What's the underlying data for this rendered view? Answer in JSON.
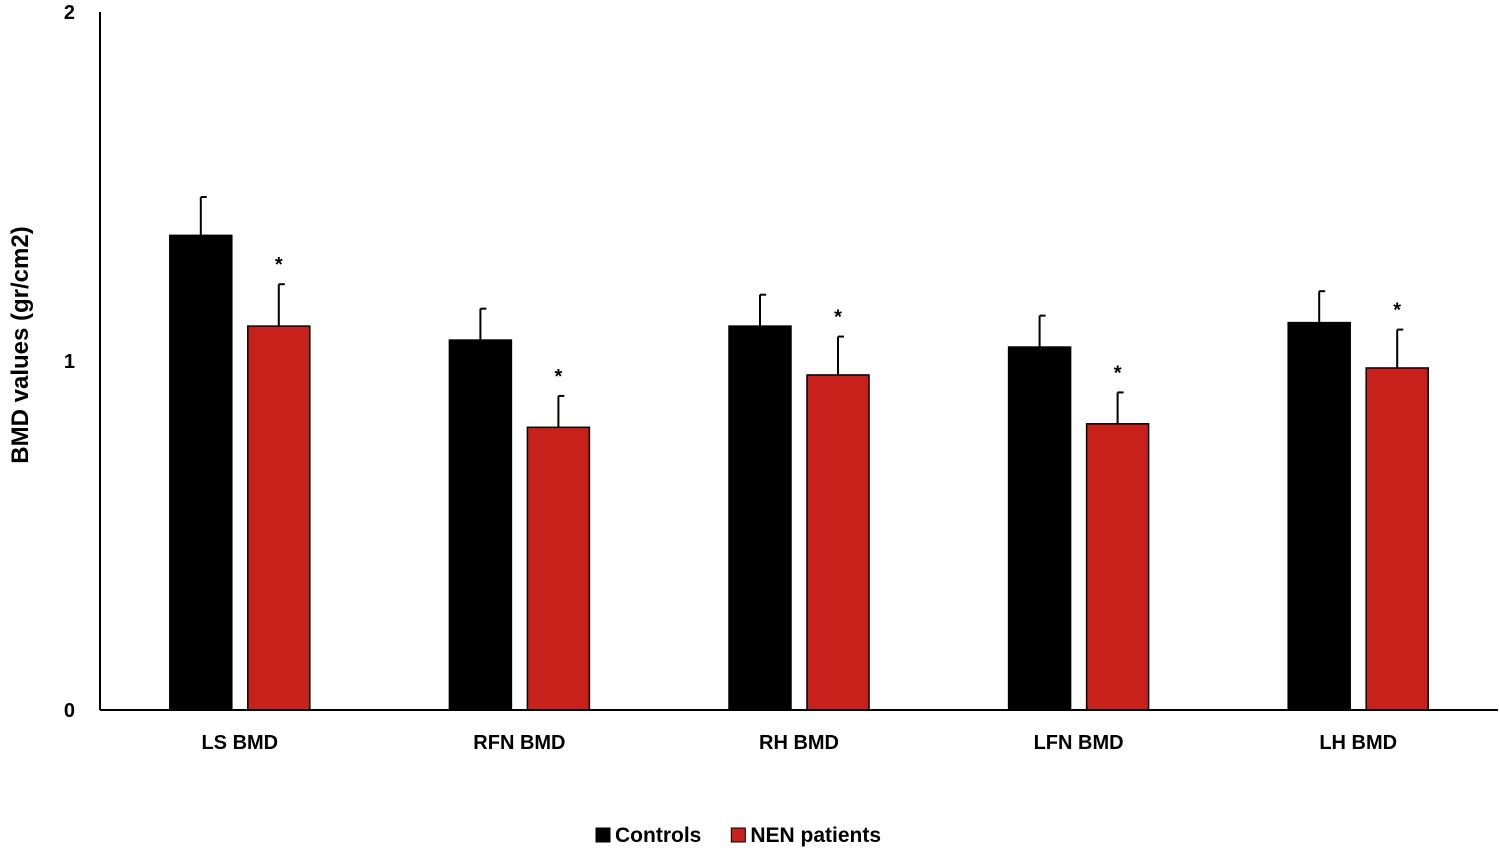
{
  "chart_data": {
    "type": "bar",
    "title": "",
    "xlabel": "",
    "ylabel": "BMD values (gr/cm2)",
    "ylim": [
      0,
      2
    ],
    "yticks": [
      "0",
      "1",
      "2"
    ],
    "grid": false,
    "legend_position": "bottom-center",
    "categories": [
      "LS BMD",
      "RFN BMD",
      "RH BMD",
      "LFN BMD",
      "LH BMD"
    ],
    "series": [
      {
        "name": "Controls",
        "color": "#000000",
        "values": [
          1.36,
          1.06,
          1.1,
          1.04,
          1.11
        ],
        "errors": [
          0.11,
          0.09,
          0.09,
          0.09,
          0.09
        ],
        "significance": [
          "",
          "",
          "",
          "",
          ""
        ]
      },
      {
        "name": "NEN patients",
        "color": "#c8201a",
        "values": [
          1.1,
          0.81,
          0.96,
          0.82,
          0.98
        ],
        "errors": [
          0.12,
          0.09,
          0.11,
          0.09,
          0.11
        ],
        "significance": [
          "*",
          "*",
          "*",
          "*",
          "*"
        ]
      }
    ]
  }
}
